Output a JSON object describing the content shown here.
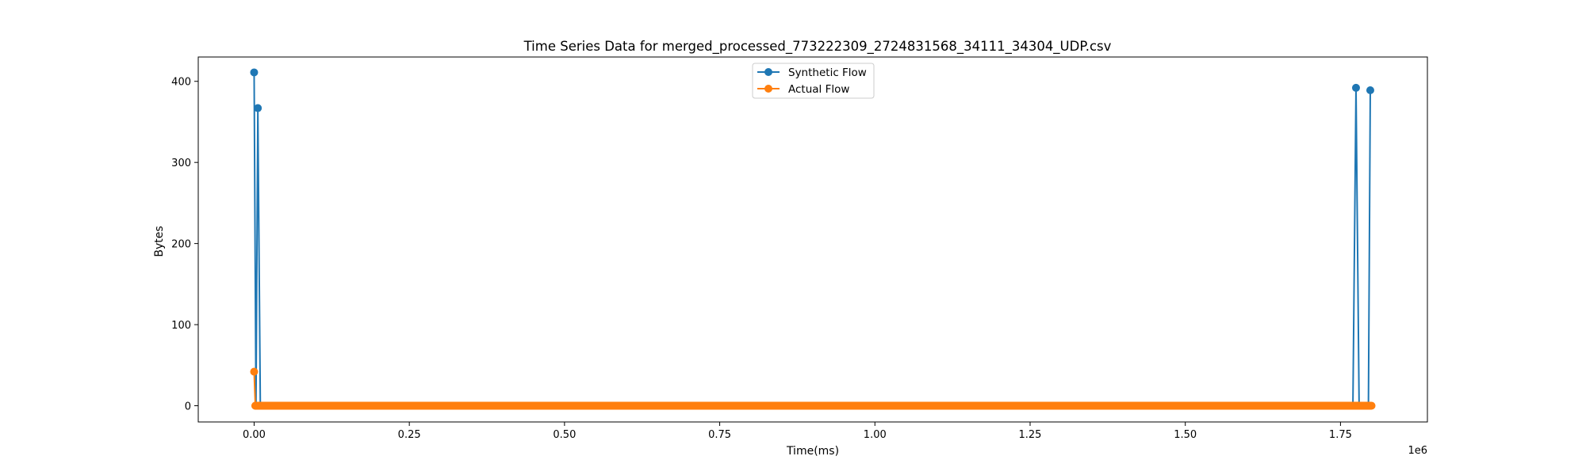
{
  "chart_data": {
    "type": "line",
    "title": "Time Series Data for merged_processed_773222309_2724831568_34111_34304_UDP.csv",
    "xlabel": "Time(ms)",
    "ylabel": "Bytes",
    "x_offset_label": "1e6",
    "xlim": [
      -90000,
      1890000
    ],
    "ylim": [
      -20,
      430
    ],
    "x_ticks": [
      0,
      250000,
      500000,
      750000,
      1000000,
      1250000,
      1500000,
      1750000
    ],
    "x_tick_labels": [
      "0.00",
      "0.25",
      "0.50",
      "0.75",
      "1.00",
      "1.25",
      "1.50",
      "1.75"
    ],
    "y_ticks": [
      0,
      100,
      200,
      300,
      400
    ],
    "y_tick_labels": [
      "0",
      "100",
      "200",
      "300",
      "400"
    ],
    "grid": false,
    "legend": "top-center",
    "series": [
      {
        "name": "Synthetic Flow",
        "color": "#1f77b4",
        "x": [
          0,
          3000,
          6000,
          10000,
          1750000,
          1770000,
          1775000,
          1780000,
          1795000,
          1798000
        ],
        "y": [
          411,
          0,
          367,
          0,
          0,
          0,
          392,
          0,
          0,
          389
        ],
        "baseline": {
          "from": 10000,
          "to": 1770000,
          "value": 0
        }
      },
      {
        "name": "Actual Flow",
        "color": "#ff7f0e",
        "x": [
          0,
          2000
        ],
        "y": [
          42,
          0
        ],
        "baseline": {
          "from": 2000,
          "to": 1800000,
          "value": 0
        }
      }
    ]
  }
}
